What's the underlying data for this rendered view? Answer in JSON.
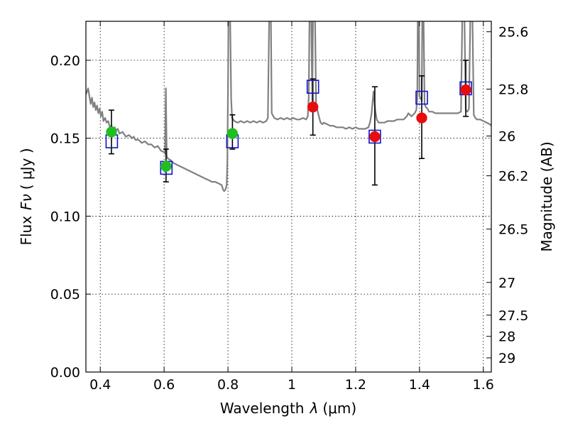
{
  "chart_data": {
    "type": "scatter",
    "xlabel_main": "Wavelength",
    "xlabel_symbol": "λ",
    "xlabel_unit": "(μm)",
    "ylabel_main": "Flux",
    "ylabel_symbol": "Fν",
    "ylabel_unit": "( μJy )",
    "ylabel_right": "Magnitude (AB)",
    "xlim": [
      0.355,
      1.625
    ],
    "ylim": [
      0.0,
      0.225
    ],
    "grid": true,
    "x_ticks": [
      0.4,
      0.6,
      0.8,
      1.0,
      1.2,
      1.4,
      1.6
    ],
    "x_tick_labels": [
      "0.4",
      "0.6",
      "0.8",
      "1",
      "1.2",
      "1.4",
      "1.6"
    ],
    "y_ticks": [
      0.0,
      0.05,
      0.1,
      0.15,
      0.2
    ],
    "y_tick_labels": [
      "0.00",
      "0.05",
      "0.10",
      "0.15",
      "0.20"
    ],
    "right_ticks": [
      {
        "flux": 0.2183,
        "label": "25.6"
      },
      {
        "flux": 0.1815,
        "label": "25.8"
      },
      {
        "flux": 0.1514,
        "label": "26"
      },
      {
        "flux": 0.1259,
        "label": "26.2"
      },
      {
        "flux": 0.0917,
        "label": "26.5"
      },
      {
        "flux": 0.0575,
        "label": "27"
      },
      {
        "flux": 0.0365,
        "label": "27.5"
      },
      {
        "flux": 0.0229,
        "label": "28"
      },
      {
        "flux": 0.0091,
        "label": "29"
      }
    ],
    "model_spectrum": {
      "color": "#808080",
      "points": [
        [
          0.355,
          0.178
        ],
        [
          0.362,
          0.182
        ],
        [
          0.366,
          0.177
        ],
        [
          0.37,
          0.172
        ],
        [
          0.374,
          0.176
        ],
        [
          0.378,
          0.17
        ],
        [
          0.382,
          0.173
        ],
        [
          0.386,
          0.168
        ],
        [
          0.39,
          0.171
        ],
        [
          0.394,
          0.166
        ],
        [
          0.398,
          0.169
        ],
        [
          0.402,
          0.164
        ],
        [
          0.406,
          0.167
        ],
        [
          0.41,
          0.161
        ],
        [
          0.415,
          0.163
        ],
        [
          0.42,
          0.16
        ],
        [
          0.425,
          0.161
        ],
        [
          0.43,
          0.157
        ],
        [
          0.435,
          0.158
        ],
        [
          0.44,
          0.156
        ],
        [
          0.445,
          0.157
        ],
        [
          0.45,
          0.155
        ],
        [
          0.455,
          0.156
        ],
        [
          0.46,
          0.153
        ],
        [
          0.47,
          0.154
        ],
        [
          0.48,
          0.151
        ],
        [
          0.49,
          0.152
        ],
        [
          0.5,
          0.15
        ],
        [
          0.505,
          0.151
        ],
        [
          0.51,
          0.149
        ],
        [
          0.52,
          0.149
        ],
        [
          0.53,
          0.147
        ],
        [
          0.54,
          0.148
        ],
        [
          0.55,
          0.146
        ],
        [
          0.56,
          0.146
        ],
        [
          0.57,
          0.144
        ],
        [
          0.58,
          0.145
        ],
        [
          0.59,
          0.142
        ],
        [
          0.6,
          0.141
        ],
        [
          0.603,
          0.14
        ],
        [
          0.6055,
          0.182
        ],
        [
          0.608,
          0.139
        ],
        [
          0.611,
          0.137
        ],
        [
          0.62,
          0.136
        ],
        [
          0.63,
          0.134
        ],
        [
          0.64,
          0.133
        ],
        [
          0.65,
          0.132
        ],
        [
          0.66,
          0.131
        ],
        [
          0.67,
          0.13
        ],
        [
          0.68,
          0.129
        ],
        [
          0.69,
          0.128
        ],
        [
          0.7,
          0.127
        ],
        [
          0.71,
          0.126
        ],
        [
          0.72,
          0.125
        ],
        [
          0.73,
          0.124
        ],
        [
          0.74,
          0.123
        ],
        [
          0.75,
          0.122
        ],
        [
          0.76,
          0.122
        ],
        [
          0.77,
          0.121
        ],
        [
          0.78,
          0.12
        ],
        [
          0.785,
          0.117
        ],
        [
          0.788,
          0.116
        ],
        [
          0.792,
          0.117
        ],
        [
          0.796,
          0.12
        ],
        [
          0.798,
          0.135
        ],
        [
          0.8,
          0.18
        ],
        [
          0.802,
          0.24
        ],
        [
          0.806,
          0.24
        ],
        [
          0.81,
          0.175
        ],
        [
          0.813,
          0.163
        ],
        [
          0.82,
          0.161
        ],
        [
          0.83,
          0.16
        ],
        [
          0.84,
          0.161
        ],
        [
          0.85,
          0.16
        ],
        [
          0.86,
          0.161
        ],
        [
          0.87,
          0.16
        ],
        [
          0.88,
          0.161
        ],
        [
          0.89,
          0.16
        ],
        [
          0.9,
          0.161
        ],
        [
          0.91,
          0.16
        ],
        [
          0.92,
          0.161
        ],
        [
          0.925,
          0.163
        ],
        [
          0.93,
          0.24
        ],
        [
          0.934,
          0.24
        ],
        [
          0.937,
          0.166
        ],
        [
          0.945,
          0.163
        ],
        [
          0.955,
          0.162
        ],
        [
          0.965,
          0.163
        ],
        [
          0.975,
          0.162
        ],
        [
          0.985,
          0.163
        ],
        [
          0.995,
          0.162
        ],
        [
          1.005,
          0.163
        ],
        [
          1.015,
          0.162
        ],
        [
          1.025,
          0.162
        ],
        [
          1.035,
          0.163
        ],
        [
          1.045,
          0.162
        ],
        [
          1.05,
          0.164
        ],
        [
          1.053,
          0.176
        ],
        [
          1.056,
          0.24
        ],
        [
          1.06,
          0.24
        ],
        [
          1.064,
          0.174
        ],
        [
          1.067,
          0.24
        ],
        [
          1.072,
          0.24
        ],
        [
          1.076,
          0.171
        ],
        [
          1.08,
          0.168
        ],
        [
          1.086,
          0.163
        ],
        [
          1.09,
          0.16
        ],
        [
          1.096,
          0.159
        ],
        [
          1.1,
          0.16
        ],
        [
          1.11,
          0.159
        ],
        [
          1.12,
          0.158
        ],
        [
          1.13,
          0.158
        ],
        [
          1.14,
          0.157
        ],
        [
          1.15,
          0.157
        ],
        [
          1.16,
          0.157
        ],
        [
          1.17,
          0.156
        ],
        [
          1.18,
          0.157
        ],
        [
          1.19,
          0.156
        ],
        [
          1.2,
          0.157
        ],
        [
          1.21,
          0.156
        ],
        [
          1.22,
          0.156
        ],
        [
          1.23,
          0.156
        ],
        [
          1.24,
          0.157
        ],
        [
          1.245,
          0.16
        ],
        [
          1.25,
          0.166
        ],
        [
          1.253,
          0.173
        ],
        [
          1.256,
          0.18
        ],
        [
          1.259,
          0.173
        ],
        [
          1.262,
          0.167
        ],
        [
          1.266,
          0.162
        ],
        [
          1.272,
          0.16
        ],
        [
          1.28,
          0.16
        ],
        [
          1.29,
          0.16
        ],
        [
          1.3,
          0.161
        ],
        [
          1.31,
          0.161
        ],
        [
          1.32,
          0.161
        ],
        [
          1.33,
          0.162
        ],
        [
          1.34,
          0.162
        ],
        [
          1.35,
          0.162
        ],
        [
          1.355,
          0.163
        ],
        [
          1.36,
          0.164
        ],
        [
          1.365,
          0.166
        ],
        [
          1.37,
          0.165
        ],
        [
          1.375,
          0.164
        ],
        [
          1.38,
          0.165
        ],
        [
          1.385,
          0.166
        ],
        [
          1.39,
          0.168
        ],
        [
          1.393,
          0.175
        ],
        [
          1.395,
          0.24
        ],
        [
          1.398,
          0.24
        ],
        [
          1.4,
          0.177
        ],
        [
          1.403,
          0.176
        ],
        [
          1.405,
          0.175
        ],
        [
          1.407,
          0.174
        ],
        [
          1.409,
          0.24
        ],
        [
          1.412,
          0.24
        ],
        [
          1.416,
          0.172
        ],
        [
          1.42,
          0.17
        ],
        [
          1.425,
          0.169
        ],
        [
          1.43,
          0.167
        ],
        [
          1.44,
          0.167
        ],
        [
          1.45,
          0.166
        ],
        [
          1.46,
          0.166
        ],
        [
          1.47,
          0.166
        ],
        [
          1.48,
          0.166
        ],
        [
          1.49,
          0.166
        ],
        [
          1.5,
          0.166
        ],
        [
          1.51,
          0.166
        ],
        [
          1.52,
          0.166
        ],
        [
          1.53,
          0.167
        ],
        [
          1.535,
          0.24
        ],
        [
          1.54,
          0.24
        ],
        [
          1.545,
          0.168
        ],
        [
          1.55,
          0.167
        ],
        [
          1.555,
          0.169
        ],
        [
          1.56,
          0.24
        ],
        [
          1.565,
          0.24
        ],
        [
          1.57,
          0.165
        ],
        [
          1.575,
          0.163
        ],
        [
          1.58,
          0.162
        ],
        [
          1.59,
          0.162
        ],
        [
          1.6,
          0.161
        ],
        [
          1.61,
          0.16
        ],
        [
          1.62,
          0.159
        ],
        [
          1.625,
          0.158
        ]
      ]
    },
    "series": [
      {
        "marker": "circle",
        "color": "#1fbf1f",
        "points": [
          {
            "x": 0.435,
            "y": 0.154,
            "yerr_low": 0.14,
            "yerr_high": 0.168
          },
          {
            "x": 0.606,
            "y": 0.132,
            "yerr_low": 0.122,
            "yerr_high": 0.143
          },
          {
            "x": 0.814,
            "y": 0.153,
            "yerr_low": 0.143,
            "yerr_high": 0.165
          }
        ]
      },
      {
        "marker": "circle",
        "color": "#e80d0d",
        "points": [
          {
            "x": 1.066,
            "y": 0.17,
            "yerr_low": 0.152,
            "yerr_high": 0.188
          },
          {
            "x": 1.26,
            "y": 0.151,
            "yerr_low": 0.12,
            "yerr_high": 0.183
          },
          {
            "x": 1.407,
            "y": 0.163,
            "yerr_low": 0.137,
            "yerr_high": 0.19
          },
          {
            "x": 1.545,
            "y": 0.181,
            "yerr_low": 0.164,
            "yerr_high": 0.2
          }
        ]
      },
      {
        "marker": "open-square",
        "color": "#1111cc",
        "points": [
          {
            "x": 0.436,
            "y": 0.148
          },
          {
            "x": 0.607,
            "y": 0.131
          },
          {
            "x": 0.814,
            "y": 0.148
          },
          {
            "x": 1.066,
            "y": 0.183
          },
          {
            "x": 1.26,
            "y": 0.151
          },
          {
            "x": 1.407,
            "y": 0.176
          },
          {
            "x": 1.545,
            "y": 0.182
          }
        ]
      }
    ]
  }
}
